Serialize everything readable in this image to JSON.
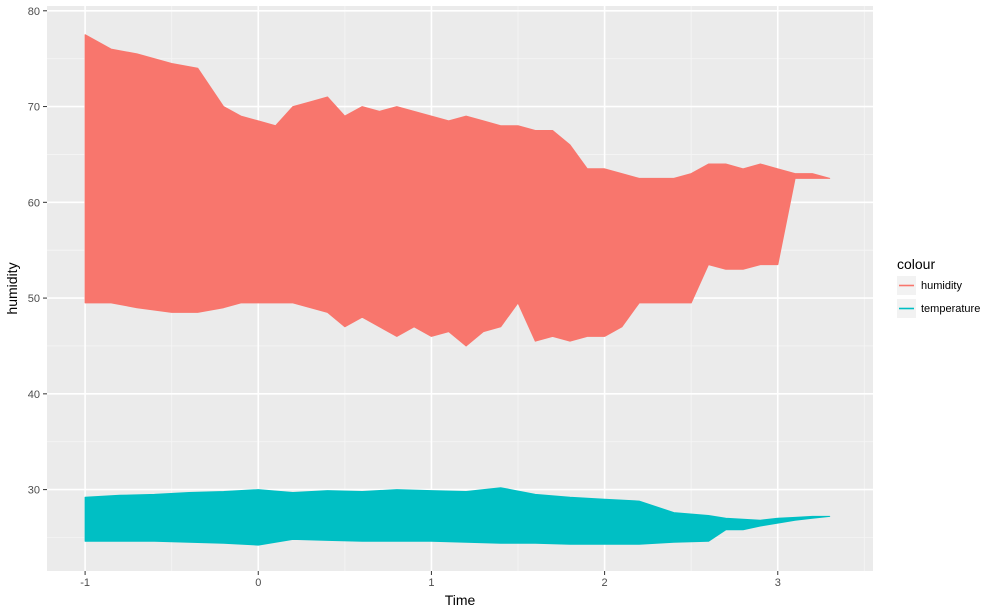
{
  "chart_data": {
    "type": "area",
    "xlabel": "Time",
    "ylabel": "humidity",
    "xlim": [
      -1.22,
      3.55
    ],
    "ylim": [
      21.5,
      80.5
    ],
    "x_ticks": [
      -1,
      0,
      1,
      2,
      3
    ],
    "x_tick_labels": [
      "-1",
      "0",
      "1",
      "2",
      "3"
    ],
    "y_ticks": [
      30,
      40,
      50,
      60,
      70,
      80
    ],
    "y_tick_labels": [
      "30",
      "40",
      "50",
      "60",
      "70",
      "80"
    ],
    "grid": true,
    "legend": {
      "title": "colour",
      "position": "right",
      "entries": [
        "humidity",
        "temperature"
      ]
    },
    "series": [
      {
        "name": "humidity",
        "color": "#F8766D",
        "x": [
          -1.0,
          -0.85,
          -0.7,
          -0.5,
          -0.35,
          -0.2,
          -0.1,
          0.0,
          0.1,
          0.2,
          0.3,
          0.4,
          0.5,
          0.6,
          0.7,
          0.8,
          0.9,
          1.0,
          1.1,
          1.2,
          1.3,
          1.4,
          1.5,
          1.6,
          1.7,
          1.8,
          1.9,
          2.0,
          2.1,
          2.2,
          2.3,
          2.4,
          2.5,
          2.6,
          2.7,
          2.8,
          2.9,
          3.0,
          3.1,
          3.2,
          3.3
        ],
        "upper": [
          77.5,
          76.0,
          75.5,
          74.5,
          74.0,
          70.0,
          69.0,
          68.5,
          68.0,
          70.0,
          70.5,
          71.0,
          69.0,
          70.0,
          69.5,
          70.0,
          69.5,
          69.0,
          68.5,
          69.0,
          68.5,
          68.0,
          68.0,
          67.5,
          67.5,
          66.0,
          63.5,
          63.5,
          63.0,
          62.5,
          62.5,
          62.5,
          63.0,
          64.0,
          64.0,
          63.5,
          64.0,
          63.5,
          63.0,
          63.0,
          62.5
        ],
        "lower": [
          49.5,
          49.5,
          49.0,
          48.5,
          48.5,
          49.0,
          49.5,
          49.5,
          49.5,
          49.5,
          49.0,
          48.5,
          47.0,
          48.0,
          47.0,
          46.0,
          47.0,
          46.0,
          46.5,
          45.0,
          46.5,
          47.0,
          49.5,
          45.5,
          46.0,
          45.5,
          46.0,
          46.0,
          47.0,
          49.5,
          49.5,
          49.5,
          49.5,
          53.5,
          53.0,
          53.0,
          53.5,
          53.5,
          62.5,
          62.5,
          62.5
        ]
      },
      {
        "name": "temperature",
        "color": "#00BFC4",
        "x": [
          -1.0,
          -0.8,
          -0.6,
          -0.4,
          -0.2,
          0.0,
          0.2,
          0.4,
          0.6,
          0.8,
          1.0,
          1.2,
          1.4,
          1.6,
          1.8,
          2.0,
          2.2,
          2.4,
          2.6,
          2.7,
          2.8,
          2.9,
          3.0,
          3.1,
          3.2,
          3.3
        ],
        "upper": [
          29.2,
          29.4,
          29.5,
          29.7,
          29.8,
          30.0,
          29.7,
          29.9,
          29.8,
          30.0,
          29.9,
          29.8,
          30.2,
          29.5,
          29.2,
          29.0,
          28.8,
          27.6,
          27.3,
          27.0,
          26.9,
          26.8,
          27.0,
          27.1,
          27.2,
          27.2
        ],
        "lower": [
          24.6,
          24.6,
          24.6,
          24.5,
          24.4,
          24.2,
          24.8,
          24.7,
          24.6,
          24.6,
          24.6,
          24.5,
          24.4,
          24.4,
          24.3,
          24.3,
          24.3,
          24.5,
          24.6,
          25.8,
          25.8,
          26.2,
          26.5,
          26.8,
          27.0,
          27.2
        ]
      }
    ]
  }
}
